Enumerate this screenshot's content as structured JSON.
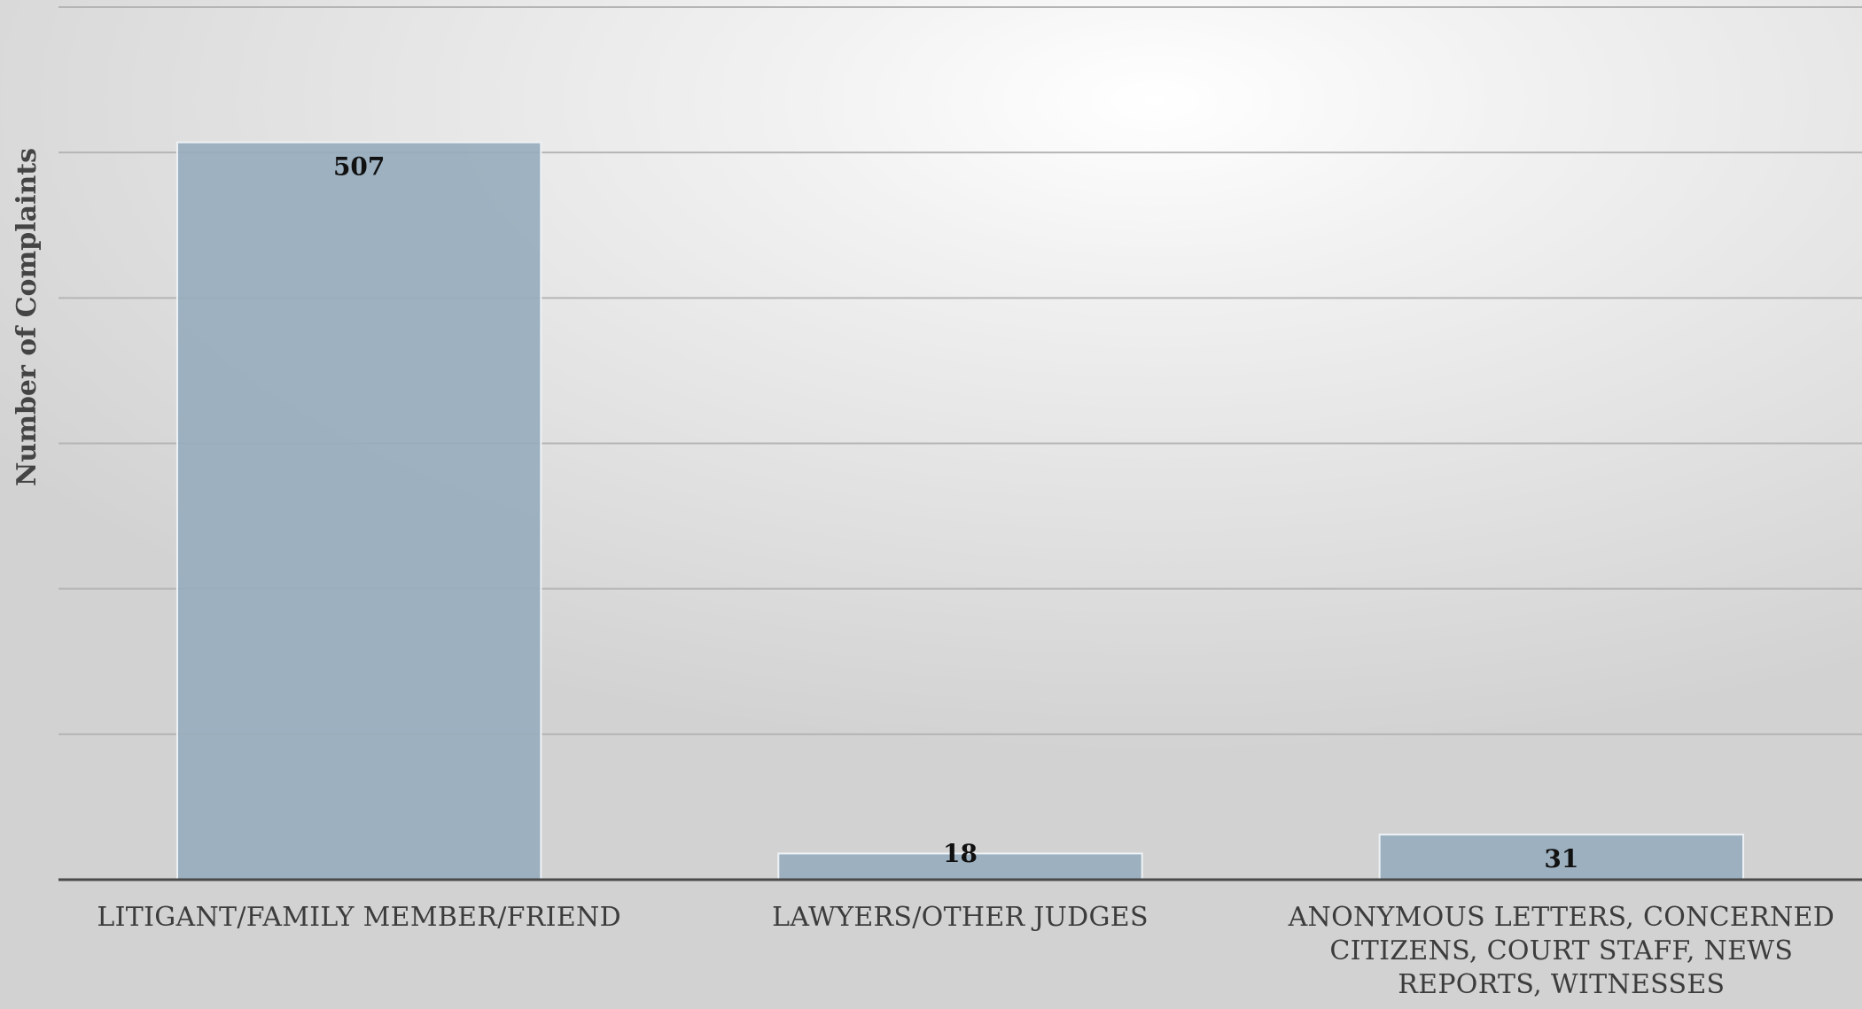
{
  "chart_data": {
    "type": "bar",
    "ylabel": "Number of Complaints",
    "xlabel": "",
    "ylim": [
      0,
      600
    ],
    "grid": true,
    "y_gridlines": [
      0,
      100,
      200,
      300,
      400,
      500,
      600
    ],
    "y_tick_labels_shown": false,
    "categories": [
      [
        "LITIGANT/FAMILY MEMBER/FRIEND"
      ],
      [
        "LAWYERS/OTHER JUDGES"
      ],
      [
        "ANONYMOUS LETTERS, CONCERNED",
        "CITIZENS, COURT STAFF, NEWS",
        "REPORTS, WITNESSES"
      ]
    ],
    "values": [
      507,
      18,
      31
    ],
    "data_labels": [
      "507",
      "18",
      "31"
    ],
    "bar_color": "#97adbd"
  }
}
